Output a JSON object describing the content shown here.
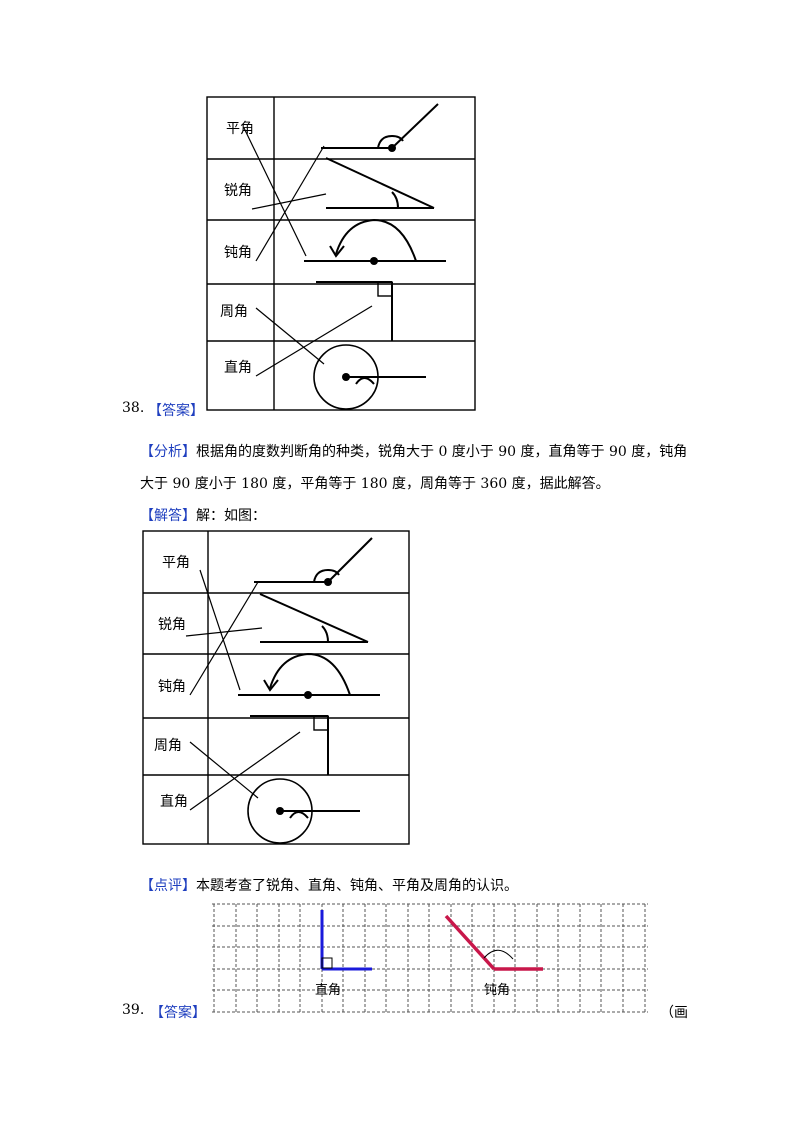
{
  "q38": {
    "number": "38.",
    "answer_label": "【答案】",
    "figure_labels": [
      "平角",
      "锐角",
      "钝角",
      "周角",
      "直角"
    ],
    "analysis_label": "【分析】",
    "analysis_line1": "根据角的度数判断角的种类，锐角大于 0 度小于 90 度，直角等于 90 度，钝角",
    "analysis_line2": "大于 90 度小于 180 度，平角等于 180 度，周角等于 360 度，据此解答。",
    "solution_label": "【解答】",
    "solution_text": "解：如图：",
    "comment_label": "【点评】",
    "comment_text": "本题考查了锐角、直角、钝角、平角及周角的认识。"
  },
  "q39": {
    "number": "39.",
    "answer_label": "【答案】",
    "grid_labels": [
      "直角",
      "钝角"
    ],
    "trailing_text": "（画",
    "colors": {
      "right_angle": "#1a1adb",
      "obtuse_angle": "#c8174a"
    }
  }
}
